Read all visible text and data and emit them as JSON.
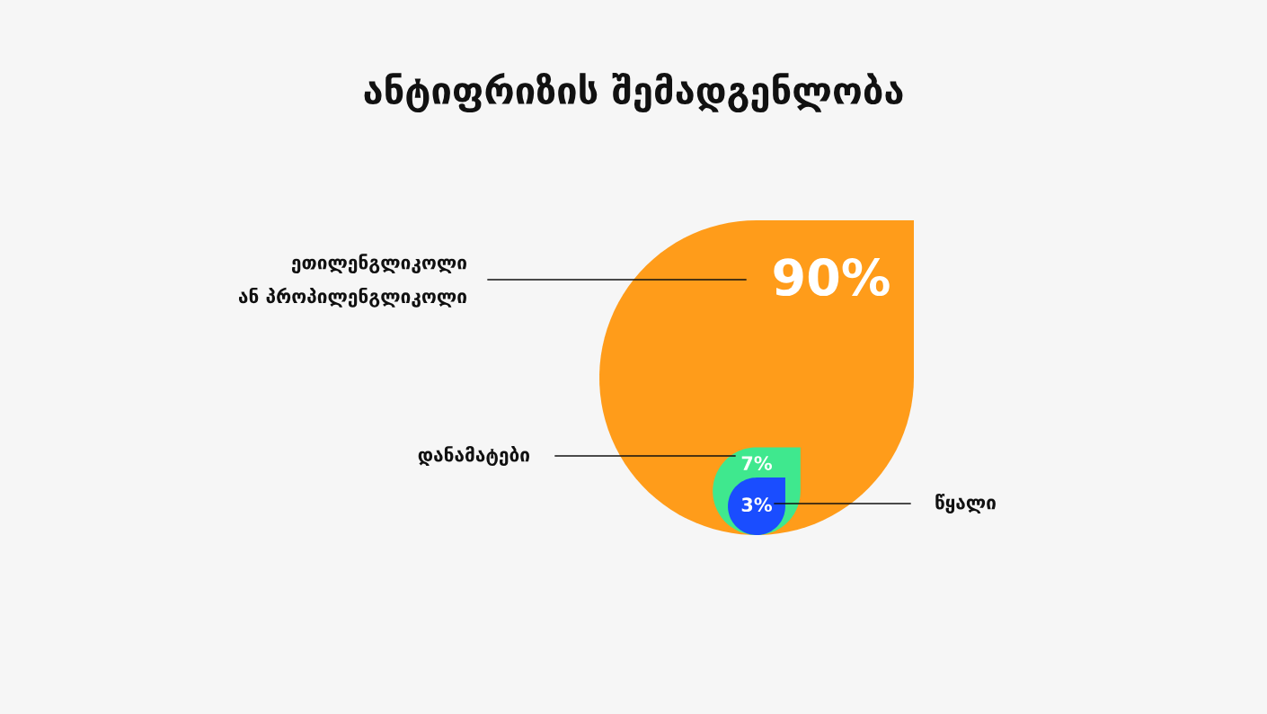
{
  "chart_data": {
    "type": "other",
    "title": "ანტიფრიზის შემადგენლობა",
    "categories": [
      "ეთილენგლიკოლი\nან პროპილენგლიკოლი",
      "დანამატები",
      "წყალი"
    ],
    "values": [
      90,
      7,
      3
    ],
    "value_labels": [
      "90%",
      "7%",
      "3%"
    ],
    "colors": [
      "#ff9c1a",
      "#3fe88e",
      "#1a4dff"
    ]
  }
}
